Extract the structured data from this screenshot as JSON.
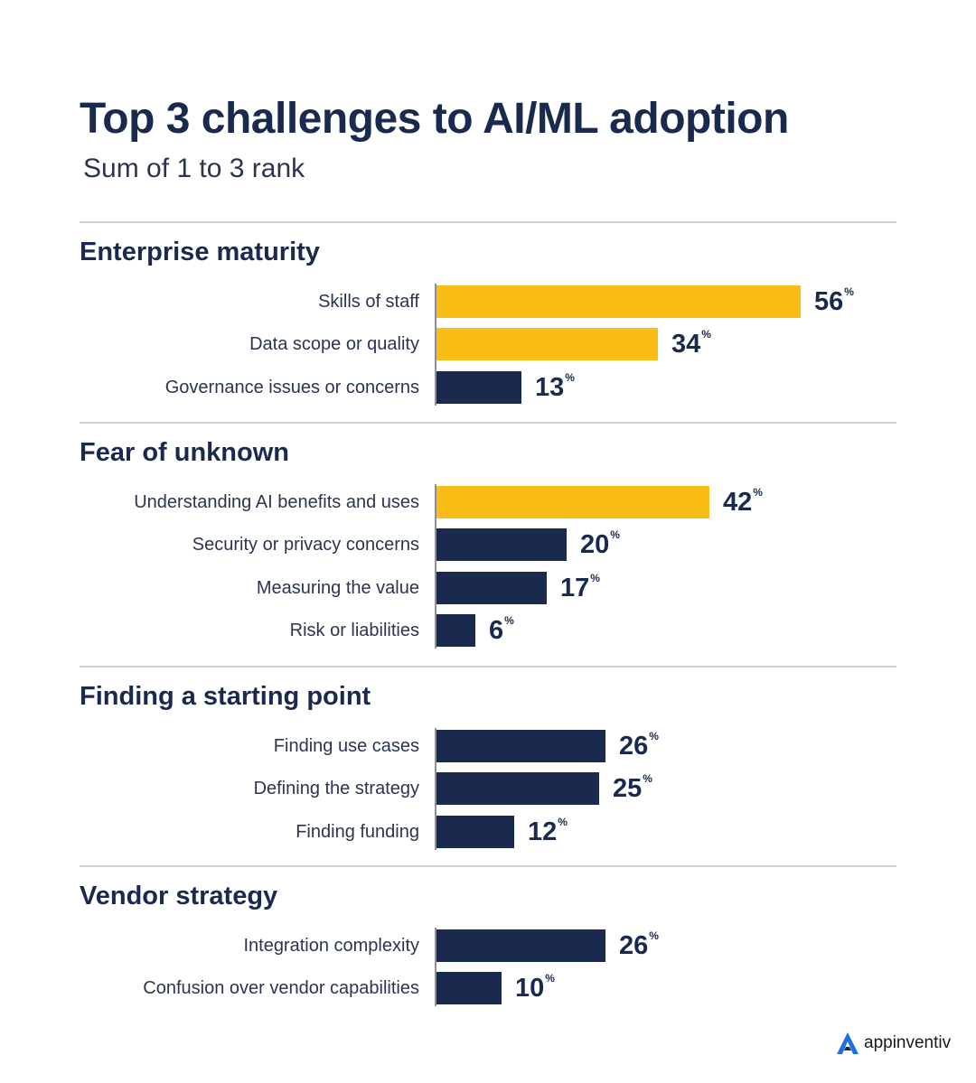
{
  "chart_data": {
    "type": "bar",
    "orientation": "horizontal",
    "title": "Top 3 challenges to AI/ML adoption",
    "subtitle": "Sum of 1 to 3 rank",
    "unit": "%",
    "xlim": [
      0,
      56
    ],
    "groups": [
      {
        "name": "Enterprise maturity",
        "items": [
          {
            "label": "Skills of staff",
            "value": 56,
            "highlight": true
          },
          {
            "label": "Data scope or quality",
            "value": 34,
            "highlight": true
          },
          {
            "label": "Governance issues or concerns",
            "value": 13,
            "highlight": false
          }
        ]
      },
      {
        "name": "Fear of unknown",
        "items": [
          {
            "label": "Understanding AI benefits and uses",
            "value": 42,
            "highlight": true
          },
          {
            "label": "Security or privacy concerns",
            "value": 20,
            "highlight": false
          },
          {
            "label": "Measuring the value",
            "value": 17,
            "highlight": false
          },
          {
            "label": "Risk or liabilities",
            "value": 6,
            "highlight": false
          }
        ]
      },
      {
        "name": "Finding a starting point",
        "items": [
          {
            "label": "Finding use cases",
            "value": 26,
            "highlight": false
          },
          {
            "label": "Defining the strategy",
            "value": 25,
            "highlight": false
          },
          {
            "label": "Finding funding",
            "value": 12,
            "highlight": false
          }
        ]
      },
      {
        "name": "Vendor strategy",
        "items": [
          {
            "label": "Integration complexity",
            "value": 26,
            "highlight": false
          },
          {
            "label": "Confusion over vendor capabilities",
            "value": 10,
            "highlight": false
          }
        ]
      }
    ]
  },
  "colors": {
    "highlight": "#f9bd16",
    "default": "#1a2a4f",
    "text": "#1a2a4f",
    "divider": "#cfcfd4",
    "brand_accent": "#1f6fe8"
  },
  "brand": {
    "icon": "appinventiv-logo-icon",
    "name": "appinventiv"
  }
}
